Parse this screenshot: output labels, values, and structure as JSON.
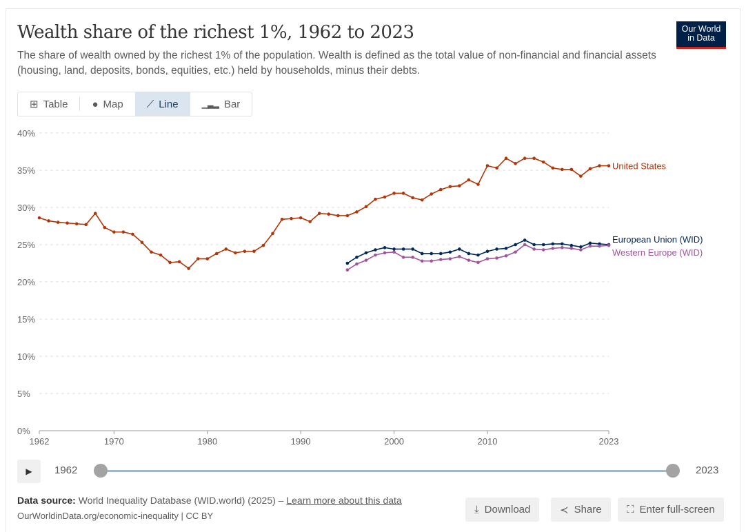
{
  "header": {
    "title": "Wealth share of the richest 1%, 1962 to 2023",
    "subtitle": "The share of wealth owned by the richest 1% of the population. Wealth is defined as the total value of non-financial and financial assets (housing, land, deposits, bonds, equities, etc.) held by households, minus their debts.",
    "logo_line1": "Our World",
    "logo_line2": "in Data"
  },
  "tabs": [
    {
      "label": "Table",
      "icon": "table-icon"
    },
    {
      "label": "Map",
      "icon": "globe-icon"
    },
    {
      "label": "Line",
      "icon": "line-chart-icon",
      "active": true
    },
    {
      "label": "Bar",
      "icon": "bar-chart-icon"
    }
  ],
  "timeline": {
    "start": "1962",
    "end": "2023",
    "play_icon": "play-icon"
  },
  "footer": {
    "source_label": "Data source:",
    "source_text": "World Inequality Database (WID.world) (2025) – ",
    "learn_more": "Learn more about this data",
    "license": "OurWorldinData.org/economic-inequality | CC BY",
    "buttons": [
      "Download",
      "Share",
      "Enter full-screen"
    ]
  },
  "chart_data": {
    "type": "line",
    "title": "Wealth share of the richest 1%, 1962 to 2023",
    "ylim": [
      0,
      40
    ],
    "xlim": [
      1962,
      2023
    ],
    "y_ticks": [
      "0%",
      "5%",
      "10%",
      "15%",
      "20%",
      "25%",
      "30%",
      "35%",
      "40%"
    ],
    "x_ticks": [
      "1962",
      "1970",
      "1980",
      "1990",
      "2000",
      "2010",
      "2023"
    ],
    "series": [
      {
        "name": "United States",
        "color": "#b13507",
        "start": 1962,
        "values": [
          28.6,
          28.2,
          28.0,
          27.9,
          27.8,
          27.7,
          29.2,
          27.3,
          26.7,
          26.7,
          26.4,
          25.3,
          24.0,
          23.6,
          22.6,
          22.7,
          21.8,
          23.1,
          23.1,
          23.8,
          24.4,
          23.9,
          24.1,
          24.1,
          24.9,
          26.5,
          28.4,
          28.5,
          28.6,
          28.1,
          29.2,
          29.1,
          28.9,
          28.9,
          29.4,
          30.1,
          31.1,
          31.4,
          31.9,
          31.9,
          31.3,
          31.0,
          31.8,
          32.4,
          32.8,
          32.9,
          33.7,
          33.1,
          35.6,
          35.3,
          36.6,
          35.9,
          36.6,
          36.6,
          36.1,
          35.3,
          35.1,
          35.1,
          34.2,
          35.2,
          35.6,
          35.6
        ]
      },
      {
        "name": "European Union (WID)",
        "color": "#00295b",
        "start": 1995,
        "values": [
          22.5,
          23.3,
          23.9,
          24.3,
          24.6,
          24.4,
          24.4,
          24.4,
          23.8,
          23.8,
          23.8,
          24.0,
          24.4,
          23.8,
          23.6,
          24.1,
          24.4,
          24.5,
          25.0,
          25.6,
          25.0,
          25.0,
          25.1,
          25.1,
          24.9,
          24.7,
          25.2,
          25.1,
          25.0
        ]
      },
      {
        "name": "Western Europe (WID)",
        "color": "#a2559c",
        "start": 1995,
        "values": [
          21.6,
          22.4,
          22.9,
          23.6,
          23.9,
          24.0,
          23.3,
          23.3,
          22.8,
          22.8,
          23.0,
          23.1,
          23.4,
          22.9,
          22.6,
          23.1,
          23.2,
          23.5,
          24.0,
          25.0,
          24.4,
          24.3,
          24.5,
          24.6,
          24.5,
          24.3,
          24.8,
          24.8,
          24.9
        ]
      }
    ]
  }
}
